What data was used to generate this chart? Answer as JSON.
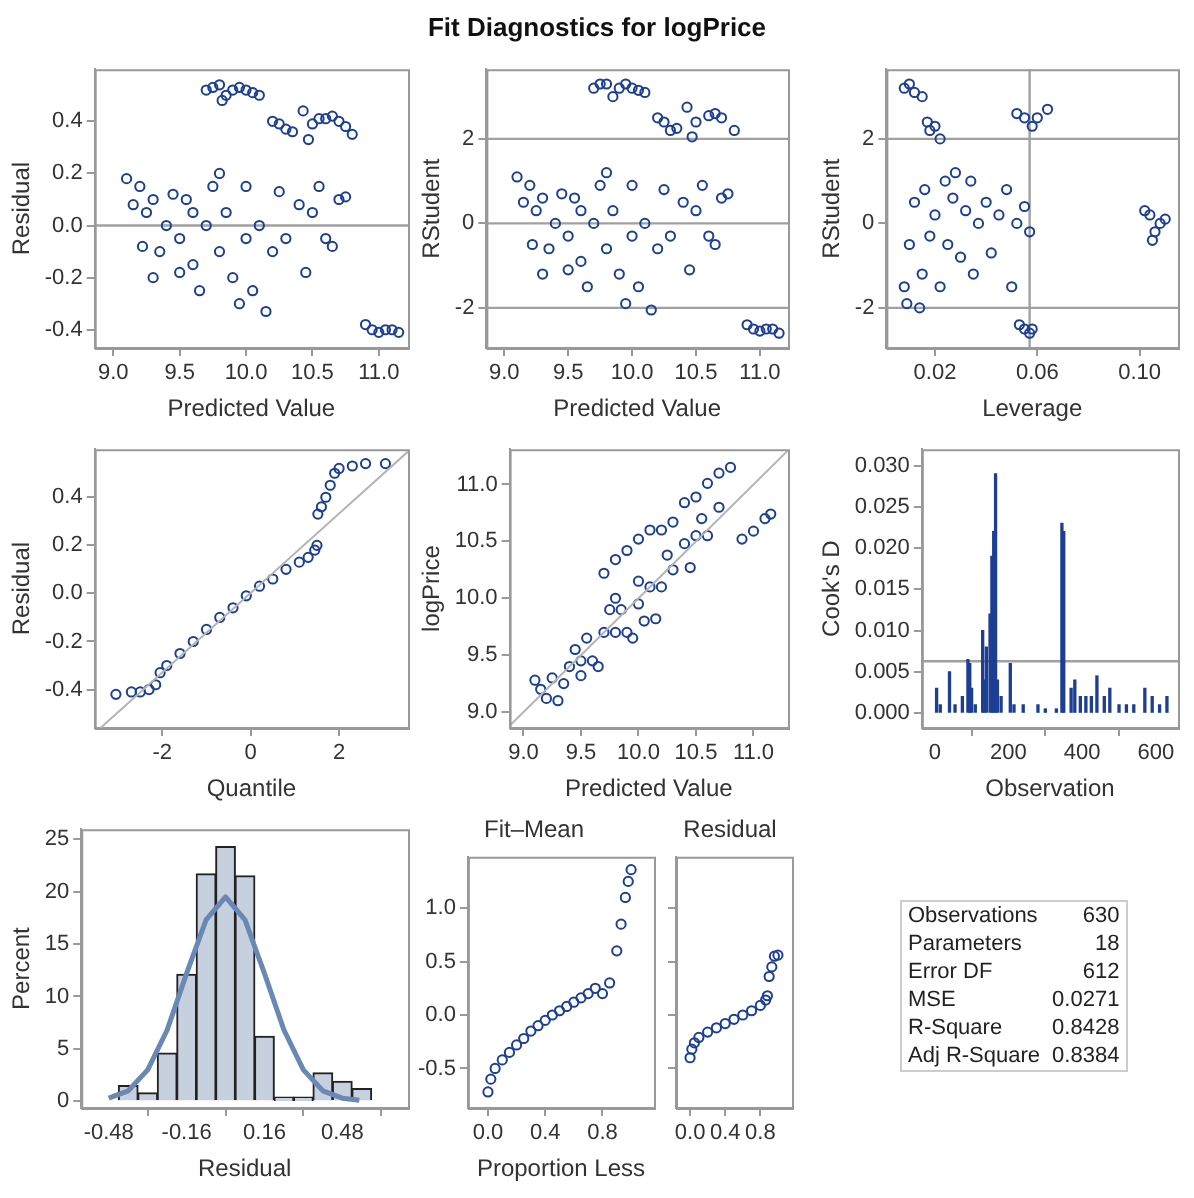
{
  "chart_data": [
    {
      "type": "scatter",
      "xlabel": "Predicted Value",
      "ylabel": "Residual",
      "marker": "circle",
      "xlim": [
        8.86,
        11.22
      ],
      "ylim": [
        -0.47,
        0.6
      ],
      "xticks": [
        {
          "value": 9,
          "label": "9.0"
        },
        9.5,
        {
          "value": 10,
          "label": "10.0"
        },
        10.5,
        {
          "value": 11,
          "label": "11.0"
        }
      ],
      "yticks": [
        -0.4,
        -0.2,
        {
          "value": 0,
          "label": "0.0"
        },
        0.2,
        0.4
      ],
      "ref_lines": [
        {
          "axis": "y",
          "value": 0
        }
      ],
      "series": [
        {
          "color": "#1c3f94",
          "x": [
            9.7,
            9.75,
            9.8,
            9.85,
            9.9,
            9.95,
            10.0,
            10.05,
            10.1,
            9.82,
            10.2,
            10.25,
            10.3,
            10.35,
            10.43,
            10.47,
            10.5,
            10.55,
            10.6,
            10.65,
            10.7,
            10.75,
            10.8,
            9.1,
            9.15,
            9.2,
            9.22,
            9.25,
            9.3,
            9.3,
            9.35,
            9.4,
            9.45,
            9.5,
            9.5,
            9.55,
            9.6,
            9.6,
            9.65,
            9.7,
            9.75,
            9.8,
            9.8,
            9.85,
            9.9,
            9.95,
            10.0,
            10.0,
            10.05,
            10.1,
            10.15,
            10.2,
            10.25,
            10.3,
            10.4,
            10.45,
            10.5,
            10.55,
            10.6,
            10.65,
            10.7,
            10.75,
            10.9,
            10.95,
            11.0,
            11.05,
            11.1,
            11.15
          ],
          "values": [
            0.52,
            0.53,
            0.54,
            0.5,
            0.52,
            0.53,
            0.52,
            0.51,
            0.5,
            0.48,
            0.4,
            0.39,
            0.37,
            0.36,
            0.44,
            0.33,
            0.39,
            0.41,
            0.41,
            0.42,
            0.4,
            0.38,
            0.35,
            0.18,
            0.08,
            0.15,
            -0.08,
            0.05,
            -0.2,
            0.1,
            -0.1,
            0.0,
            0.12,
            -0.05,
            -0.18,
            0.1,
            -0.15,
            0.05,
            -0.25,
            0.0,
            0.15,
            -0.1,
            0.2,
            0.05,
            -0.2,
            -0.3,
            -0.05,
            0.15,
            -0.25,
            0.0,
            -0.33,
            -0.1,
            0.13,
            -0.05,
            0.08,
            -0.18,
            0.05,
            0.15,
            -0.05,
            -0.08,
            0.1,
            0.11,
            -0.38,
            -0.4,
            -0.41,
            -0.4,
            -0.4,
            -0.41
          ]
        }
      ]
    },
    {
      "type": "scatter",
      "title": "Fit Diagnostics for logPrice",
      "xlabel": "Predicted Value",
      "ylabel": "RStudent",
      "marker": "circle",
      "xlim": [
        8.86,
        11.22
      ],
      "ylim": [
        -2.95,
        3.65
      ],
      "xticks": [
        {
          "value": 9,
          "label": "9.0"
        },
        9.5,
        {
          "value": 10,
          "label": "10.0"
        },
        10.5,
        {
          "value": 11,
          "label": "11.0"
        }
      ],
      "yticks": [
        -2,
        0,
        2
      ],
      "ref_lines": [
        {
          "axis": "y",
          "value": 0
        },
        {
          "axis": "y",
          "value": 2
        },
        {
          "axis": "y",
          "value": -2
        }
      ],
      "series": [
        {
          "color": "#1c3f94",
          "x": [
            9.7,
            9.75,
            9.8,
            9.85,
            9.9,
            9.95,
            10.0,
            10.05,
            10.1,
            10.2,
            10.25,
            10.3,
            10.35,
            10.43,
            10.47,
            10.5,
            10.6,
            10.65,
            10.7,
            10.8,
            9.1,
            9.15,
            9.2,
            9.22,
            9.25,
            9.3,
            9.3,
            9.35,
            9.4,
            9.45,
            9.5,
            9.5,
            9.55,
            9.6,
            9.6,
            9.65,
            9.7,
            9.75,
            9.8,
            9.8,
            9.85,
            9.9,
            9.95,
            10.0,
            10.0,
            10.05,
            10.1,
            10.15,
            10.2,
            10.25,
            10.3,
            10.4,
            10.45,
            10.5,
            10.55,
            10.6,
            10.65,
            10.7,
            10.75,
            10.9,
            10.95,
            11.0,
            11.05,
            11.1,
            11.15
          ],
          "values": [
            3.2,
            3.3,
            3.3,
            3.0,
            3.2,
            3.3,
            3.2,
            3.15,
            3.1,
            2.5,
            2.4,
            2.2,
            2.25,
            2.75,
            2.05,
            2.4,
            2.55,
            2.6,
            2.5,
            2.2,
            1.1,
            0.5,
            0.9,
            -0.5,
            0.3,
            -1.2,
            0.6,
            -0.6,
            0.0,
            0.7,
            -0.3,
            -1.1,
            0.6,
            -0.9,
            0.3,
            -1.5,
            0.0,
            0.9,
            -0.6,
            1.2,
            0.3,
            -1.2,
            -1.9,
            -0.3,
            0.9,
            -1.5,
            0.0,
            -2.05,
            -0.6,
            0.8,
            -0.3,
            0.5,
            -1.1,
            0.3,
            0.9,
            -0.3,
            -0.5,
            0.6,
            0.7,
            -2.4,
            -2.5,
            -2.55,
            -2.5,
            -2.5,
            -2.6
          ]
        }
      ]
    },
    {
      "type": "scatter",
      "xlabel": "Leverage",
      "ylabel": "RStudent",
      "marker": "circle",
      "xlim": [
        0.001,
        0.115
      ],
      "ylim": [
        -2.95,
        3.65
      ],
      "xticks": [
        0.02,
        0.06,
        {
          "value": 0.1,
          "label": "0.10"
        }
      ],
      "yticks": [
        -2,
        0,
        2
      ],
      "ref_lines": [
        {
          "axis": "y",
          "value": 2
        },
        {
          "axis": "y",
          "value": -2
        },
        {
          "axis": "x",
          "value": 0.057
        }
      ],
      "series": [
        {
          "color": "#1c3f94",
          "x": [
            0.008,
            0.01,
            0.012,
            0.015,
            0.017,
            0.018,
            0.02,
            0.022,
            0.052,
            0.055,
            0.058,
            0.06,
            0.064,
            0.008,
            0.009,
            0.01,
            0.012,
            0.015,
            0.016,
            0.018,
            0.02,
            0.022,
            0.024,
            0.025,
            0.027,
            0.028,
            0.03,
            0.032,
            0.034,
            0.035,
            0.037,
            0.04,
            0.042,
            0.045,
            0.048,
            0.05,
            0.052,
            0.055,
            0.057,
            0.014,
            0.053,
            0.055,
            0.057,
            0.058,
            0.102,
            0.104,
            0.106,
            0.108,
            0.105,
            0.11
          ],
          "values": [
            3.2,
            3.3,
            3.1,
            3.0,
            2.4,
            2.2,
            2.3,
            2.0,
            2.6,
            2.5,
            2.3,
            2.5,
            2.7,
            -1.5,
            -1.9,
            -0.5,
            0.5,
            -1.2,
            0.8,
            -0.3,
            0.2,
            -1.5,
            1.0,
            -0.5,
            0.6,
            1.2,
            -0.8,
            0.3,
            1.0,
            -1.2,
            0.0,
            0.5,
            -0.7,
            0.2,
            0.8,
            -1.5,
            0.0,
            0.4,
            -0.2,
            -2.0,
            -2.4,
            -2.5,
            -2.6,
            -2.5,
            0.3,
            0.2,
            -0.2,
            0.0,
            -0.4,
            0.1
          ]
        }
      ]
    },
    {
      "type": "scatter",
      "xlabel": "Quantile",
      "ylabel": "Residual",
      "xlim": [
        -3.53,
        3.56
      ],
      "ylim": [
        -0.56,
        0.6
      ],
      "xticks": [
        -2,
        0,
        2
      ],
      "yticks": [
        -0.4,
        -0.2,
        {
          "value": 0,
          "label": "0.0"
        },
        0.2,
        0.4
      ],
      "series": [
        {
          "color": "#1c3f94",
          "marker": "circle",
          "x": [
            -3.05,
            -2.7,
            -2.5,
            -2.3,
            -2.15,
            -2.05,
            -1.9,
            -1.6,
            -1.3,
            -1.0,
            -0.7,
            -0.4,
            -0.1,
            0.2,
            0.5,
            0.8,
            1.1,
            1.3,
            1.45,
            1.5,
            1.52,
            1.6,
            1.7,
            1.8,
            1.9,
            2.0,
            2.3,
            2.6,
            3.05
          ],
          "values": [
            -0.42,
            -0.41,
            -0.41,
            -0.4,
            -0.38,
            -0.33,
            -0.3,
            -0.25,
            -0.2,
            -0.15,
            -0.1,
            -0.06,
            -0.01,
            0.03,
            0.06,
            0.1,
            0.13,
            0.15,
            0.18,
            0.2,
            0.33,
            0.36,
            0.4,
            0.45,
            0.5,
            0.52,
            0.53,
            0.54,
            0.54
          ]
        },
        {
          "type": "line",
          "color": "#b4b4b4",
          "x": [
            -3.4,
            3.56
          ],
          "values": [
            -0.56,
            0.59
          ]
        }
      ]
    },
    {
      "type": "scatter",
      "xlabel": "Predicted Value",
      "ylabel": "logPrice",
      "xlim": [
        8.88,
        11.3
      ],
      "ylim": [
        8.86,
        11.31
      ],
      "xticks": [
        {
          "value": 9,
          "label": "9.0"
        },
        9.5,
        {
          "value": 10,
          "label": "10.0"
        },
        10.5,
        {
          "value": 11,
          "label": "11.0"
        }
      ],
      "yticks": [
        {
          "value": 9,
          "label": "9.0"
        },
        9.5,
        {
          "value": 10,
          "label": "10.0"
        },
        10.5,
        {
          "value": 11,
          "label": "11.0"
        }
      ],
      "series": [
        {
          "color": "#1c3f94",
          "marker": "circle",
          "x": [
            9.1,
            9.15,
            9.2,
            9.25,
            9.3,
            9.35,
            9.4,
            9.45,
            9.5,
            9.5,
            9.55,
            9.6,
            9.65,
            9.7,
            9.75,
            9.8,
            9.8,
            9.85,
            9.9,
            9.95,
            10.0,
            10.0,
            10.05,
            10.1,
            10.15,
            10.2,
            10.25,
            10.3,
            10.4,
            10.45,
            10.5,
            10.55,
            10.6,
            10.7,
            9.7,
            9.8,
            9.9,
            10.0,
            10.1,
            10.2,
            10.3,
            10.4,
            10.5,
            10.6,
            10.7,
            10.8,
            10.9,
            11.0,
            11.1,
            11.15
          ],
          "values": [
            9.28,
            9.2,
            9.12,
            9.3,
            9.1,
            9.25,
            9.4,
            9.55,
            9.45,
            9.32,
            9.65,
            9.45,
            9.4,
            9.7,
            9.9,
            9.7,
            10.0,
            9.9,
            9.7,
            9.65,
            10.15,
            9.95,
            9.8,
            10.1,
            9.82,
            10.1,
            10.38,
            10.25,
            10.48,
            10.27,
            10.55,
            10.7,
            10.55,
            10.8,
            10.22,
            10.34,
            10.42,
            10.52,
            10.6,
            10.6,
            10.67,
            10.84,
            10.89,
            11.01,
            11.1,
            11.15,
            10.52,
            10.59,
            10.7,
            10.74
          ]
        },
        {
          "type": "line",
          "color": "#b4b4b4",
          "x": [
            8.88,
            11.3
          ],
          "values": [
            8.88,
            11.3
          ]
        }
      ]
    },
    {
      "type": "bar",
      "xlabel": "Observation",
      "ylabel": "Cook's D",
      "xlim": [
        -35,
        660
      ],
      "ylim": [
        -0.0018,
        0.032
      ],
      "xticks": [
        0,
        200,
        400,
        600
      ],
      "yticks": [
        {
          "value": 0,
          "label": "0.000"
        },
        {
          "value": 0.005,
          "label": "0.005"
        },
        {
          "value": 0.01,
          "label": "0.010"
        },
        {
          "value": 0.015,
          "label": "0.015"
        },
        {
          "value": 0.02,
          "label": "0.020"
        },
        {
          "value": 0.025,
          "label": "0.025"
        },
        {
          "value": 0.03,
          "label": "0.030"
        }
      ],
      "ref_lines": [
        {
          "axis": "y",
          "value": 0.0063
        }
      ],
      "color": "#1c3f94",
      "x": [
        5,
        15,
        40,
        55,
        75,
        90,
        95,
        100,
        110,
        130,
        135,
        140,
        150,
        155,
        160,
        165,
        170,
        180,
        205,
        215,
        240,
        280,
        300,
        330,
        345,
        350,
        370,
        380,
        395,
        410,
        425,
        440,
        460,
        475,
        500,
        520,
        540,
        570,
        590,
        610,
        630
      ],
      "values": [
        0.003,
        0.001,
        0.005,
        0.001,
        0.002,
        0.0065,
        0.006,
        0.003,
        0.001,
        0.01,
        0.004,
        0.008,
        0.012,
        0.019,
        0.022,
        0.029,
        0.004,
        0.002,
        0.006,
        0.001,
        0.001,
        0.001,
        0.0005,
        0.0005,
        0.023,
        0.022,
        0.003,
        0.004,
        0.002,
        0.002,
        0.002,
        0.0045,
        0.002,
        0.003,
        0.001,
        0.001,
        0.001,
        0.003,
        0.002,
        0.001,
        0.002
      ]
    },
    {
      "type": "histogram",
      "xlabel": "Residual",
      "ylabel": "Percent",
      "xlim": [
        -0.593,
        0.75
      ],
      "ylim": [
        -0.64,
        25.96
      ],
      "xticks": [
        -0.48,
        -0.16,
        0.16,
        0.48
      ],
      "yticks": [
        0,
        5,
        10,
        15,
        20,
        25
      ],
      "color": "#c7d0df",
      "bins": [
        -0.44,
        -0.36,
        -0.28,
        -0.2,
        -0.12,
        -0.04,
        0.04,
        0.12,
        0.2,
        0.28,
        0.36,
        0.44,
        0.52,
        0.6
      ],
      "values": [
        1.5,
        0.8,
        4.6,
        12.1,
        21.7,
        24.3,
        21.5,
        6.2,
        0.4,
        0.4,
        2.7,
        1.9,
        1.2
      ],
      "series": [
        {
          "type": "line",
          "color": "#6a88b4",
          "x": [
            -0.48,
            -0.4,
            -0.32,
            -0.24,
            -0.16,
            -0.08,
            0,
            0.08,
            0.16,
            0.24,
            0.32,
            0.4,
            0.48,
            0.55
          ],
          "values": [
            0.3,
            1.0,
            3.0,
            6.8,
            12.2,
            17.3,
            19.5,
            17.3,
            12.2,
            6.8,
            3.0,
            1.0,
            0.3,
            0.1
          ]
        }
      ]
    },
    {
      "type": "scatter",
      "subtitle": "Fit–Mean",
      "xlabel": "Proportion Less",
      "marker": "circle",
      "xlim": [
        -0.14,
        1.16
      ],
      "ylim": [
        -0.87,
        1.48
      ],
      "xticks": [
        {
          "value": 0,
          "label": "0.0"
        },
        0.4,
        0.8
      ],
      "yticks": [
        -0.5,
        {
          "value": 0,
          "label": "0.0"
        },
        0.5,
        {
          "value": 1,
          "label": "1.0"
        }
      ],
      "series": [
        {
          "color": "#1c3f94",
          "x": [
            0,
            0.02,
            0.05,
            0.1,
            0.15,
            0.2,
            0.25,
            0.3,
            0.35,
            0.4,
            0.45,
            0.5,
            0.55,
            0.6,
            0.65,
            0.7,
            0.75,
            0.8,
            0.85,
            0.9,
            0.93,
            0.96,
            0.98,
            1.0
          ],
          "values": [
            -0.72,
            -0.6,
            -0.5,
            -0.42,
            -0.35,
            -0.28,
            -0.22,
            -0.15,
            -0.1,
            -0.05,
            0.0,
            0.04,
            0.08,
            0.12,
            0.16,
            0.2,
            0.25,
            0.2,
            0.3,
            0.6,
            0.85,
            1.1,
            1.25,
            1.36
          ]
        }
      ]
    },
    {
      "type": "scatter",
      "subtitle": "Residual",
      "marker": "circle",
      "tick_labels": "x",
      "xlim": [
        -0.16,
        1.16
      ],
      "ylim": [
        -0.87,
        1.48
      ],
      "xticks": [
        {
          "value": 0,
          "label": "0.0"
        },
        0.4,
        0.8
      ],
      "yticks": [
        -0.5,
        0,
        0.5,
        1
      ],
      "series": [
        {
          "color": "#1c3f94",
          "x": [
            0,
            0.02,
            0.05,
            0.1,
            0.2,
            0.3,
            0.4,
            0.5,
            0.6,
            0.7,
            0.8,
            0.86,
            0.88,
            0.9,
            0.93,
            0.96,
            1.0
          ],
          "values": [
            -0.4,
            -0.32,
            -0.26,
            -0.21,
            -0.16,
            -0.12,
            -0.08,
            -0.04,
            0.0,
            0.04,
            0.09,
            0.14,
            0.18,
            0.36,
            0.45,
            0.55,
            0.56
          ]
        }
      ]
    },
    {
      "type": "other",
      "categories": [
        "Observations",
        "Parameters",
        "Error DF",
        "MSE",
        "R-Square",
        "Adj R-Square"
      ],
      "values": [
        630,
        18,
        612,
        0.0271,
        0.8428,
        0.8384
      ],
      "data_labels": true
    }
  ]
}
